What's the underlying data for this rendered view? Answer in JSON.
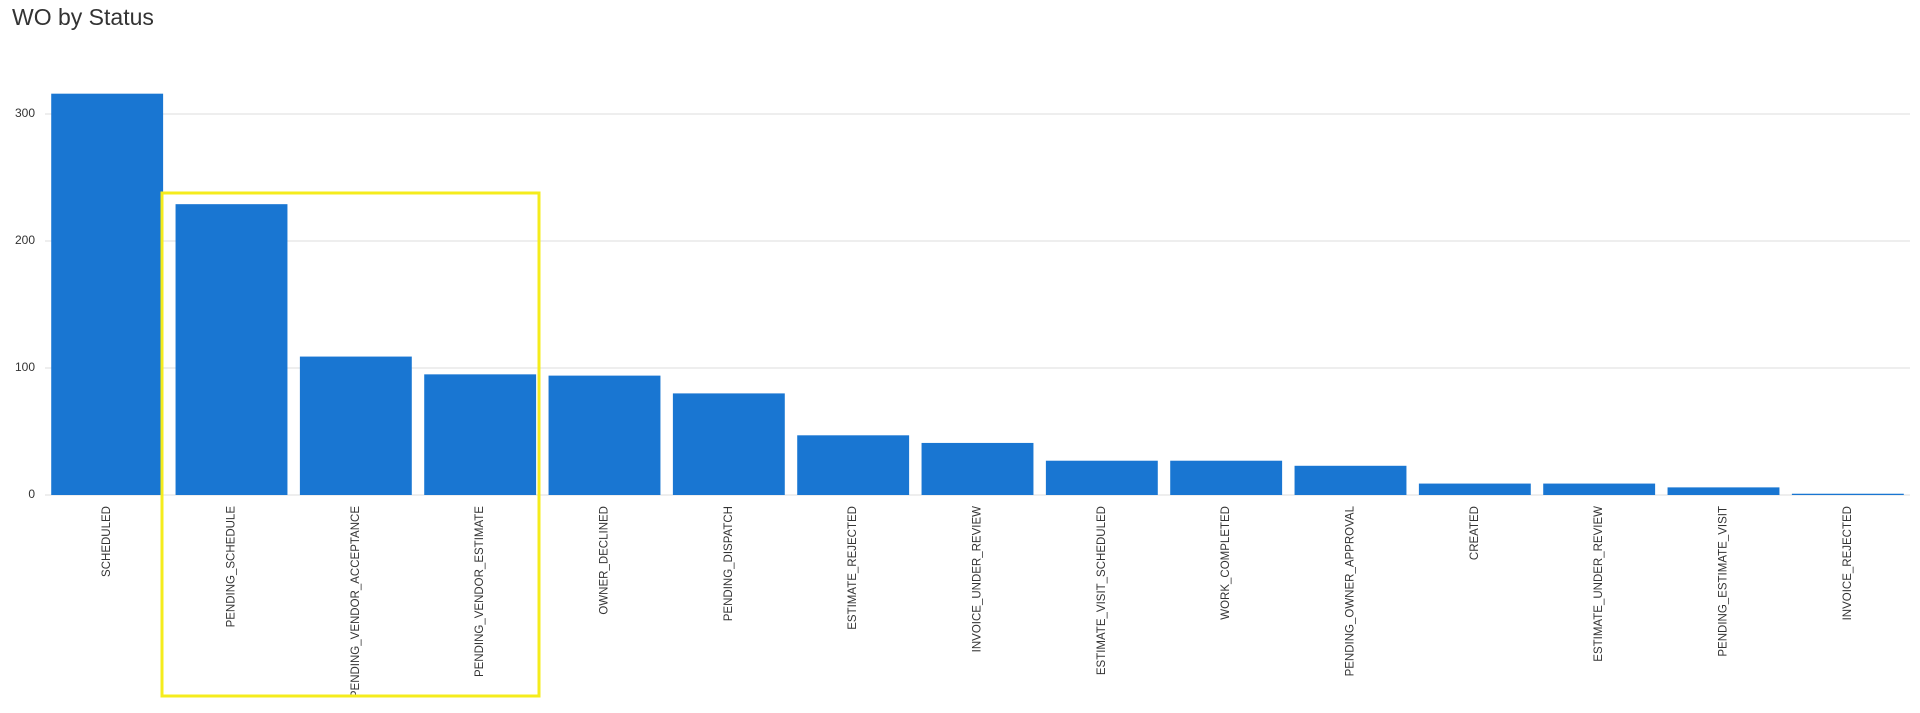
{
  "chart_data": {
    "type": "bar",
    "title": "WO by Status",
    "categories": [
      "SCHEDULED",
      "PENDING_SCHEDULE",
      "PENDING_VENDOR_ACCEPTANCE",
      "PENDING_VENDOR_ESTIMATE",
      "OWNER_DECLINED",
      "PENDING_DISPATCH",
      "ESTIMATE_REJECTED",
      "INVOICE_UNDER_REVIEW",
      "ESTIMATE_VISIT_SCHEDULED",
      "WORK_COMPLETED",
      "PENDING_OWNER_APPROVAL",
      "CREATED",
      "ESTIMATE_UNDER_REVIEW",
      "PENDING_ESTIMATE_VISIT",
      "INVOICE_REJECTED"
    ],
    "values": [
      316,
      229,
      109,
      95,
      94,
      80,
      47,
      41,
      27,
      27,
      23,
      9,
      9,
      6,
      1
    ],
    "color": "#1976d2",
    "ylim": [
      0,
      350
    ],
    "yticks": [
      0,
      100,
      200,
      300
    ],
    "grid": true
  }
}
